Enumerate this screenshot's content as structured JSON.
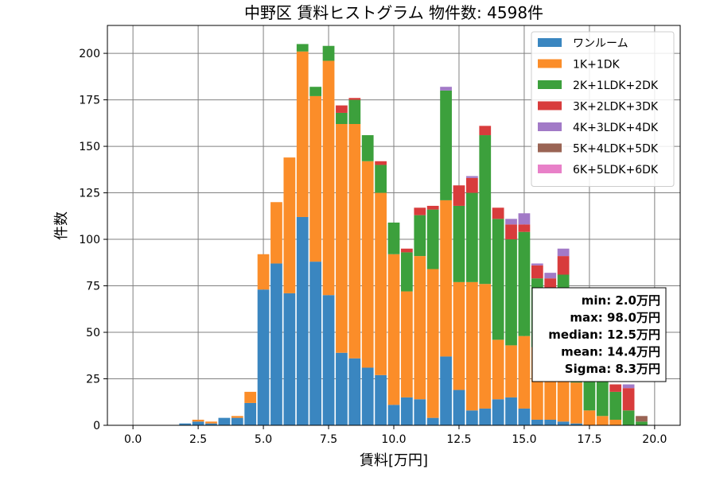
{
  "chart_data": {
    "type": "bar",
    "stacked": true,
    "title": "中野区 賃料ヒストグラム  物件数: 4598件",
    "xlabel": "賃料[万円]",
    "ylabel": "件数",
    "xlim": [
      -0.98,
      20.98
    ],
    "ylim": [
      0,
      215
    ],
    "xticks": [
      "0.0",
      "2.5",
      "5.0",
      "7.5",
      "10.0",
      "12.5",
      "15.0",
      "17.5",
      "20.0"
    ],
    "xtick_values": [
      0,
      2.5,
      5,
      7.5,
      10,
      12.5,
      15,
      17.5,
      20
    ],
    "yticks": [
      "0",
      "25",
      "50",
      "75",
      "100",
      "125",
      "150",
      "175",
      "200"
    ],
    "ytick_values": [
      0,
      25,
      50,
      75,
      100,
      125,
      150,
      175,
      200
    ],
    "grid": true,
    "legend_position": "top-right",
    "bin_width": 0.5,
    "categories": [
      1,
      1.5,
      2,
      2.5,
      3,
      3.5,
      4,
      4.5,
      5,
      5.5,
      6,
      6.5,
      7,
      7.5,
      8,
      8.5,
      9,
      9.5,
      10,
      10.5,
      11,
      11.5,
      12,
      12.5,
      13,
      13.5,
      14,
      14.5,
      15,
      15.5,
      16,
      16.5,
      17,
      17.5,
      18,
      18.5,
      19,
      19.5
    ],
    "series": [
      {
        "name": "ワンルーム",
        "color": "#3a86c0",
        "values": [
          0,
          0,
          1,
          2,
          1,
          4,
          4,
          12,
          73,
          87,
          71,
          112,
          88,
          70,
          39,
          36,
          31,
          27,
          11,
          15,
          14,
          4,
          37,
          19,
          8,
          9,
          14,
          15,
          9,
          3,
          3,
          2,
          1,
          0,
          0,
          0,
          0,
          0
        ]
      },
      {
        "name": "1K+1DK",
        "color": "#fb8d29",
        "values": [
          0,
          0,
          0,
          1,
          1,
          0,
          1,
          6,
          19,
          33,
          73,
          89,
          89,
          126,
          123,
          126,
          111,
          98,
          81,
          57,
          77,
          80,
          84,
          58,
          69,
          67,
          32,
          28,
          39,
          39,
          36,
          33,
          22,
          8,
          5,
          3,
          0,
          0
        ]
      },
      {
        "name": "2K+1LDK+2DK",
        "color": "#3ca03c",
        "values": [
          0,
          0,
          0,
          0,
          0,
          0,
          0,
          0,
          0,
          0,
          0,
          4,
          5,
          8,
          6,
          13,
          14,
          15,
          17,
          21,
          22,
          32,
          59,
          41,
          48,
          80,
          65,
          57,
          56,
          37,
          34,
          46,
          34,
          28,
          24,
          15,
          8,
          2
        ]
      },
      {
        "name": "3K+2LDK+3DK",
        "color": "#d83c3c",
        "values": [
          0,
          0,
          0,
          0,
          0,
          0,
          0,
          0,
          0,
          0,
          0,
          0,
          0,
          0,
          4,
          1,
          0,
          2,
          0,
          2,
          4,
          2,
          0,
          11,
          8,
          5,
          6,
          8,
          4,
          7,
          6,
          10,
          5,
          6,
          3,
          4,
          12,
          0
        ]
      },
      {
        "name": "4K+3LDK+4DK",
        "color": "#a27ac7",
        "values": [
          0,
          0,
          0,
          0,
          0,
          0,
          0,
          0,
          0,
          0,
          0,
          0,
          0,
          0,
          0,
          0,
          0,
          0,
          0,
          0,
          0,
          0,
          2,
          0,
          1,
          0,
          0,
          3,
          6,
          1,
          3,
          4,
          2,
          0,
          0,
          0,
          2,
          0
        ]
      },
      {
        "name": "5K+4LDK+5DK",
        "color": "#9a6454",
        "values": [
          0,
          0,
          0,
          0,
          0,
          0,
          0,
          0,
          0,
          0,
          0,
          0,
          0,
          0,
          0,
          0,
          0,
          0,
          0,
          0,
          0,
          0,
          0,
          0,
          0,
          0,
          0,
          0,
          0,
          0,
          0,
          0,
          0,
          0,
          1,
          0,
          0,
          3
        ]
      },
      {
        "name": "6K+5LDK+6DK",
        "color": "#e880c8",
        "values": [
          0,
          0,
          0,
          0,
          0,
          0,
          0,
          0,
          0,
          0,
          0,
          0,
          0,
          0,
          0,
          0,
          0,
          0,
          0,
          0,
          0,
          0,
          0,
          0,
          0,
          0,
          0,
          0,
          0,
          0,
          0,
          0,
          0,
          0,
          0,
          0,
          0,
          0
        ]
      }
    ],
    "annotations": [
      "min: 2.0万円",
      "max: 98.0万円",
      "median: 12.5万円",
      "mean: 14.4万円",
      "Sigma: 8.3万円"
    ]
  }
}
